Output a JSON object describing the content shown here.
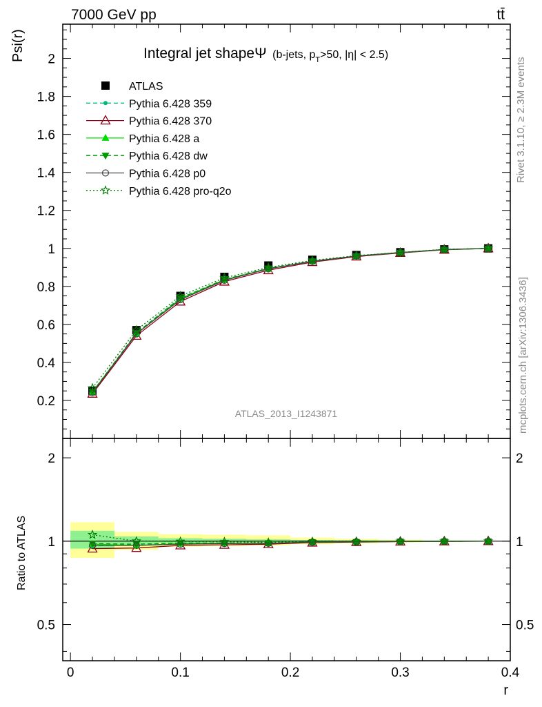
{
  "header": {
    "energy_label": "7000 GeV pp",
    "process_label": "tt̄"
  },
  "side_text": {
    "rivet": "Rivet 3.1.10, ≥ 2.3M events",
    "mcplots": "mcplots.cern.ch [arXiv:1306.3436]"
  },
  "chart_data": [
    {
      "type": "line",
      "title_main": "Integral jet shapeΨ",
      "title_detail_pre": "(b-jets, p",
      "title_detail_sub": "T",
      "title_detail_post": ">50, |η| < 2.5)",
      "ylabel": "Psi(r)",
      "xlim": [
        -0.007,
        0.4
      ],
      "ylim": [
        0,
        2.18
      ],
      "yticks": [
        "0.2",
        "0.4",
        "0.6",
        "0.8",
        "1",
        "1.2",
        "1.4",
        "1.6",
        "1.8",
        "2"
      ],
      "ytick_values": [
        0.2,
        0.4,
        0.6,
        0.8,
        1.0,
        1.2,
        1.4,
        1.6,
        1.8,
        2.0
      ],
      "analysis_label": "ATLAS_2013_I1243871",
      "x": [
        0.02,
        0.06,
        0.1,
        0.14,
        0.18,
        0.22,
        0.26,
        0.3,
        0.34,
        0.38
      ],
      "series": [
        {
          "name": "ATLAS",
          "color": "#000000",
          "marker": "square",
          "values": [
            0.25,
            0.57,
            0.75,
            0.85,
            0.91,
            0.94,
            0.965,
            0.98,
            0.995,
            1.0
          ]
        },
        {
          "name": "Pythia 6.428 359",
          "color": "#00b878",
          "marker": "dot",
          "dash": "dashed",
          "values": [
            0.24,
            0.555,
            0.74,
            0.835,
            0.895,
            0.932,
            0.96,
            0.978,
            0.994,
            1.0
          ]
        },
        {
          "name": "Pythia 6.428 370",
          "color": "#8b0016",
          "marker": "open-triangle",
          "dash": "solid",
          "values": [
            0.235,
            0.54,
            0.72,
            0.825,
            0.885,
            0.928,
            0.957,
            0.976,
            0.993,
            1.0
          ]
        },
        {
          "name": "Pythia 6.428 a",
          "color": "#00dd00",
          "marker": "triangle",
          "dash": "solid",
          "values": [
            0.245,
            0.55,
            0.735,
            0.835,
            0.893,
            0.932,
            0.96,
            0.978,
            0.994,
            1.0
          ]
        },
        {
          "name": "Pythia 6.428 dw",
          "color": "#009900",
          "marker": "down-triangle",
          "dash": "dashed",
          "values": [
            0.245,
            0.555,
            0.738,
            0.837,
            0.895,
            0.933,
            0.96,
            0.978,
            0.994,
            1.0
          ]
        },
        {
          "name": "Pythia 6.428 p0",
          "color": "#444444",
          "marker": "open-circle",
          "dash": "solid",
          "values": [
            0.24,
            0.55,
            0.73,
            0.832,
            0.892,
            0.932,
            0.96,
            0.978,
            0.994,
            1.0
          ]
        },
        {
          "name": "Pythia 6.428 pro-q2o",
          "color": "#007700",
          "marker": "open-star",
          "dash": "dotted",
          "values": [
            0.265,
            0.57,
            0.75,
            0.845,
            0.9,
            0.937,
            0.962,
            0.979,
            0.995,
            1.0
          ]
        }
      ]
    },
    {
      "type": "line",
      "ylabel": "Ratio to ATLAS",
      "xlabel": "r",
      "xlim": [
        -0.007,
        0.4
      ],
      "ylim": [
        0.37,
        2.35
      ],
      "scale": "log",
      "yticks": [
        "0.5",
        "1",
        "2"
      ],
      "ytick_values": [
        0.5,
        1,
        2
      ],
      "xticks": [
        "0",
        "0.1",
        "0.2",
        "0.3",
        "0.4"
      ],
      "xtick_values": [
        0,
        0.1,
        0.2,
        0.3,
        0.4
      ],
      "bands": {
        "x_edges": [
          0,
          0.04,
          0.08,
          0.12,
          0.16,
          0.2,
          0.24,
          0.28,
          0.32,
          0.36,
          0.4
        ],
        "stat": [
          [
            0.94,
            1.09
          ],
          [
            0.97,
            1.04
          ],
          [
            0.985,
            1.025
          ],
          [
            0.99,
            1.02
          ],
          [
            0.99,
            1.015
          ],
          [
            0.993,
            1.01
          ],
          [
            0.995,
            1.007
          ],
          [
            0.996,
            1.005
          ],
          [
            0.998,
            1.003
          ],
          [
            0.999,
            1.001
          ]
        ],
        "total": [
          [
            0.87,
            1.17
          ],
          [
            0.93,
            1.08
          ],
          [
            0.955,
            1.06
          ],
          [
            0.96,
            1.055
          ],
          [
            0.965,
            1.05
          ],
          [
            0.975,
            1.03
          ],
          [
            0.983,
            1.02
          ],
          [
            0.99,
            1.012
          ],
          [
            0.995,
            1.005
          ],
          [
            0.998,
            1.002
          ]
        ]
      },
      "x": [
        0.02,
        0.06,
        0.1,
        0.14,
        0.18,
        0.22,
        0.26,
        0.3,
        0.34,
        0.38
      ],
      "series": [
        {
          "name": "Pythia 6.428 359",
          "color": "#00b878",
          "marker": "dot",
          "dash": "dashed",
          "values": [
            0.96,
            0.975,
            0.985,
            0.985,
            0.985,
            0.992,
            0.995,
            0.998,
            0.999,
            1.0
          ]
        },
        {
          "name": "Pythia 6.428 370",
          "color": "#8b0016",
          "marker": "open-triangle",
          "dash": "solid",
          "values": [
            0.94,
            0.945,
            0.965,
            0.97,
            0.975,
            0.988,
            0.992,
            0.996,
            0.998,
            1.0
          ]
        },
        {
          "name": "Pythia 6.428 a",
          "color": "#00dd00",
          "marker": "triangle",
          "dash": "solid",
          "values": [
            0.975,
            0.965,
            0.98,
            0.985,
            0.983,
            0.992,
            0.995,
            0.998,
            0.999,
            1.0
          ]
        },
        {
          "name": "Pythia 6.428 dw",
          "color": "#009900",
          "marker": "down-triangle",
          "dash": "dashed",
          "values": [
            0.98,
            0.975,
            0.984,
            0.985,
            0.985,
            0.993,
            0.995,
            0.998,
            0.999,
            1.0
          ]
        },
        {
          "name": "Pythia 6.428 p0",
          "color": "#444444",
          "marker": "open-circle",
          "dash": "solid",
          "values": [
            0.965,
            0.965,
            0.975,
            0.98,
            0.982,
            0.992,
            0.995,
            0.998,
            0.999,
            1.0
          ]
        },
        {
          "name": "Pythia 6.428 pro-q2o",
          "color": "#007700",
          "marker": "open-star",
          "dash": "dotted",
          "values": [
            1.055,
            1.0,
            0.998,
            0.995,
            0.99,
            0.997,
            0.997,
            0.999,
            1.0,
            1.0
          ]
        }
      ]
    }
  ]
}
